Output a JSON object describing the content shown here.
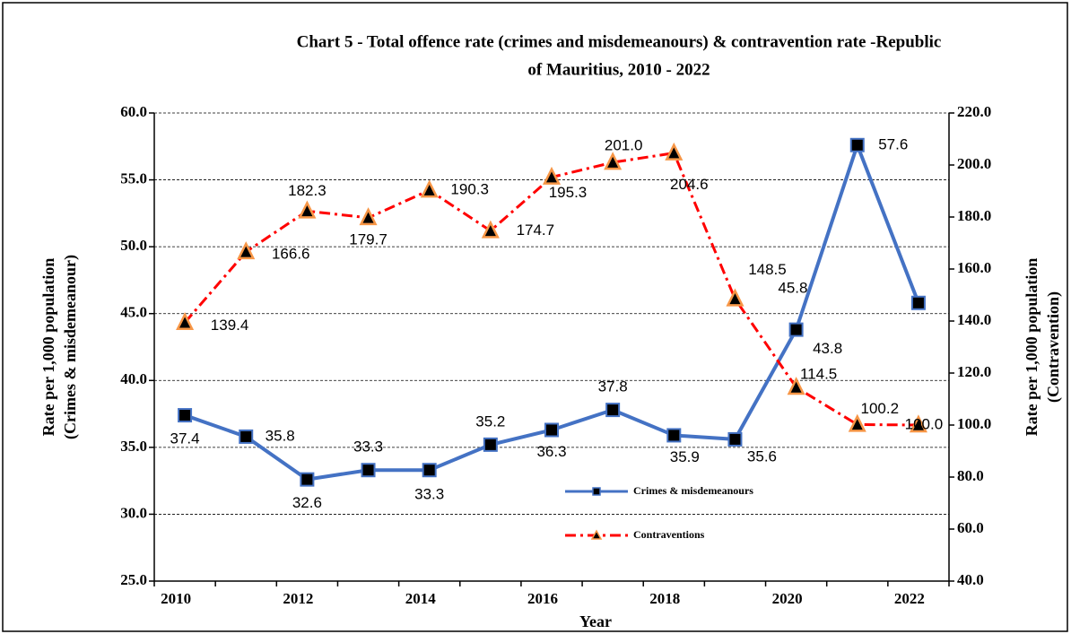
{
  "chart_data": {
    "type": "line",
    "title": [
      "Chart 5 - Total offence rate (crimes and misdemeanours) & contravention rate -Republic",
      "of Mauritius,  2010 - 2022"
    ],
    "x_label": "Year",
    "y_label": [
      "Rate per 1,000 population",
      "(Crimes & misdemeanour)"
    ],
    "y2_label": [
      "Rate per 1,000 population",
      "(Contravention)"
    ],
    "categories": [
      "2010",
      null,
      "2012",
      null,
      "2014",
      null,
      "2016",
      null,
      "2018",
      null,
      "2020",
      null,
      "2022"
    ],
    "ylim": [
      25,
      60
    ],
    "yticks": [
      {
        "value": 25,
        "label": "25.0"
      },
      {
        "value": 30,
        "label": "30.0"
      },
      {
        "value": 35,
        "label": "35.0"
      },
      {
        "value": 40,
        "label": "40.0"
      },
      {
        "value": 45,
        "label": "45.0"
      },
      {
        "value": 50,
        "label": "50.0"
      },
      {
        "value": 55,
        "label": "55.0"
      },
      {
        "value": 60,
        "label": "60.0"
      }
    ],
    "y2lim": [
      40,
      220
    ],
    "y2ticks": [
      {
        "value": 40,
        "label": "40.0"
      },
      {
        "value": 60,
        "label": "60.0"
      },
      {
        "value": 80,
        "label": "80.0"
      },
      {
        "value": 100,
        "label": "100.0"
      },
      {
        "value": 120,
        "label": "120.0"
      },
      {
        "value": 140,
        "label": "140.0"
      },
      {
        "value": 160,
        "label": "160.0"
      },
      {
        "value": 180,
        "label": "180.0"
      },
      {
        "value": 200,
        "label": "200.0"
      },
      {
        "value": 220,
        "label": "220.0"
      }
    ],
    "grid": true,
    "series": [
      {
        "name": "Crimes & misdemeanours",
        "color": "#4472c4",
        "axis": "y",
        "values": [
          37.4,
          35.8,
          32.6,
          33.3,
          33.3,
          35.2,
          36.3,
          37.8,
          35.9,
          35.6,
          43.8,
          57.6,
          45.8
        ],
        "value_labels": [
          "37.4",
          "35.8",
          "32.6",
          "33.3",
          "33.3",
          "35.2",
          "36.3",
          "37.8",
          "35.9",
          "35.6",
          "43.8",
          "57.6",
          "45.8"
        ]
      },
      {
        "name": "Contraventions",
        "color": "#ff0000",
        "axis": "y2",
        "values": [
          139.4,
          166.6,
          182.3,
          179.7,
          190.3,
          174.7,
          195.3,
          201.0,
          204.6,
          148.5,
          114.5,
          100.2,
          100.0
        ],
        "value_labels": [
          "139.4",
          "166.6",
          "182.3",
          "179.7",
          "190.3",
          "174.7",
          "195.3",
          "201.0",
          "204.6",
          "148.5",
          "114.5",
          "100.2",
          "100.0"
        ]
      }
    ]
  }
}
